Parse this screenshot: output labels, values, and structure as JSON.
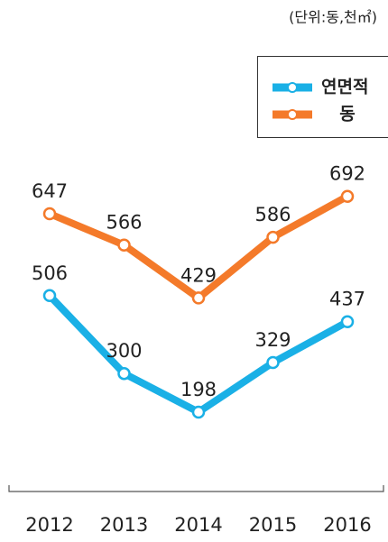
{
  "chart_data": {
    "type": "line",
    "subtitle": "(단위:동,천㎡)",
    "categories": [
      "2012",
      "2013",
      "2014",
      "2015",
      "2016"
    ],
    "series": [
      {
        "name": "연면적",
        "color": "#1ab0e6",
        "values": [
          506,
          300,
          198,
          329,
          437
        ]
      },
      {
        "name": "동",
        "color": "#f47a2a",
        "axis": "y2",
        "values": [
          647,
          566,
          429,
          586,
          692
        ]
      }
    ],
    "ylim": [
      0,
      930
    ],
    "y2lim": [
      -60,
      850
    ],
    "legend": "upper right"
  }
}
